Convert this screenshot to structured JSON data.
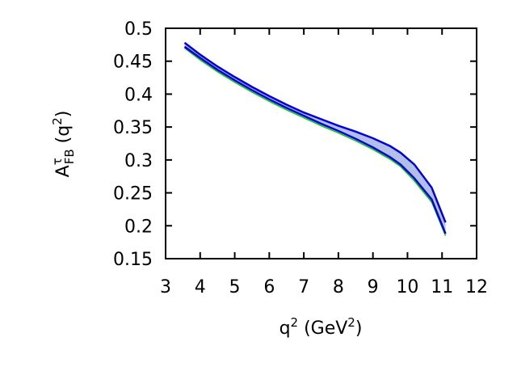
{
  "chart_data": {
    "type": "band",
    "xlabel": [
      "q",
      "2",
      " (GeV",
      "2",
      ")"
    ],
    "ylabel": [
      "A",
      "τ",
      "FB",
      " (q",
      "2",
      ")"
    ],
    "x": [
      3.55,
      4,
      4.5,
      5,
      5.5,
      6,
      6.5,
      7,
      7.5,
      8,
      8.5,
      9,
      9.5,
      9.8,
      10.2,
      10.7,
      11.1
    ],
    "series": [
      {
        "color": "#00cc00",
        "values": [
          0.47,
          0.452,
          0.434,
          0.418,
          0.403,
          0.389,
          0.376,
          0.364,
          0.352,
          0.341,
          0.329,
          0.316,
          0.301,
          0.29,
          0.268,
          0.236,
          0.185
        ]
      },
      {
        "color": "#0000e0",
        "values": [
          0.478,
          0.46,
          0.442,
          0.426,
          0.411,
          0.397,
          0.384,
          0.372,
          0.362,
          0.352,
          0.343,
          0.333,
          0.321,
          0.311,
          0.293,
          0.258,
          0.205
        ]
      },
      {
        "color": "#0000e0",
        "values": [
          0.472,
          0.455,
          0.437,
          0.421,
          0.406,
          0.392,
          0.379,
          0.367,
          0.355,
          0.344,
          0.332,
          0.319,
          0.304,
          0.293,
          0.272,
          0.24,
          0.188
        ]
      }
    ],
    "band_color": "#b4bfe6",
    "xlim": [
      3,
      12
    ],
    "xticks": [
      3,
      4,
      5,
      6,
      7,
      8,
      9,
      10,
      11,
      12
    ],
    "ylim": [
      0.15,
      0.5
    ],
    "yticks": [
      0.15,
      0.2,
      0.25,
      0.3,
      0.35,
      0.4,
      0.45,
      0.5
    ]
  }
}
